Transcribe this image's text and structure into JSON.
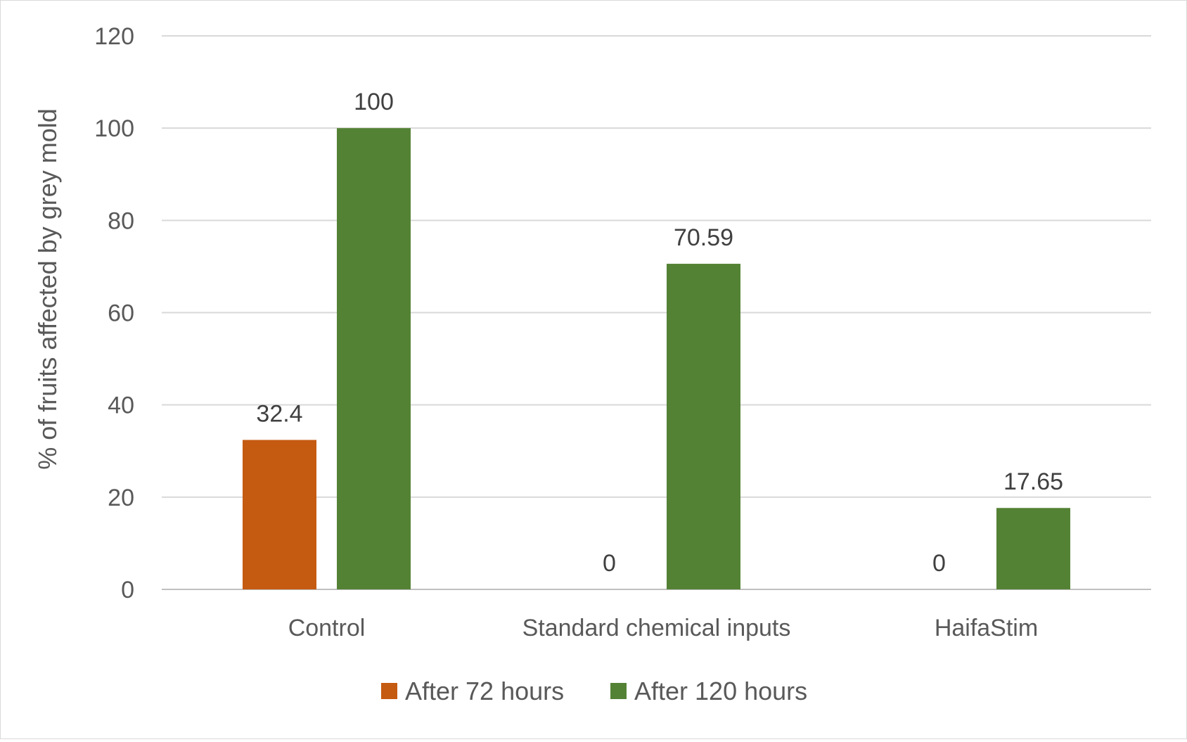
{
  "chart_data": {
    "type": "bar",
    "title": "",
    "xlabel": "",
    "ylabel": "% of fruits affected by grey mold",
    "ylim": [
      0,
      120
    ],
    "yticks": [
      0,
      20,
      40,
      60,
      80,
      100,
      120
    ],
    "grid": true,
    "legend_position": "bottom",
    "categories": [
      "Control",
      "Standard chemical inputs",
      "HaifaStim"
    ],
    "series": [
      {
        "name": "After 72 hours",
        "color": "#c55a11",
        "values": [
          32.4,
          0,
          0
        ],
        "labels": [
          "32.4",
          "0",
          "0"
        ]
      },
      {
        "name": "After 120 hours",
        "color": "#548235",
        "values": [
          100,
          70.59,
          17.65
        ],
        "labels": [
          "100",
          "70.59",
          "17.65"
        ]
      }
    ]
  }
}
